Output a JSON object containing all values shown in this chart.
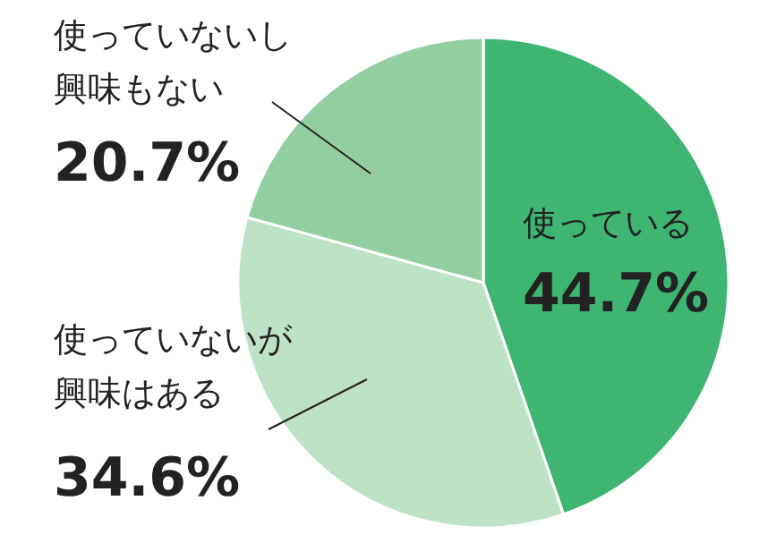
{
  "chart_data": {
    "type": "pie",
    "categories": [
      "使っている",
      "使っていないが興味はある",
      "使っていないし興味もない"
    ],
    "values": [
      44.7,
      34.6,
      20.7
    ],
    "value_labels": [
      "44.7%",
      "34.6%",
      "20.7%"
    ],
    "colors": [
      "#3fb572",
      "#bde2c5",
      "#93cea0"
    ],
    "legend": false
  }
}
